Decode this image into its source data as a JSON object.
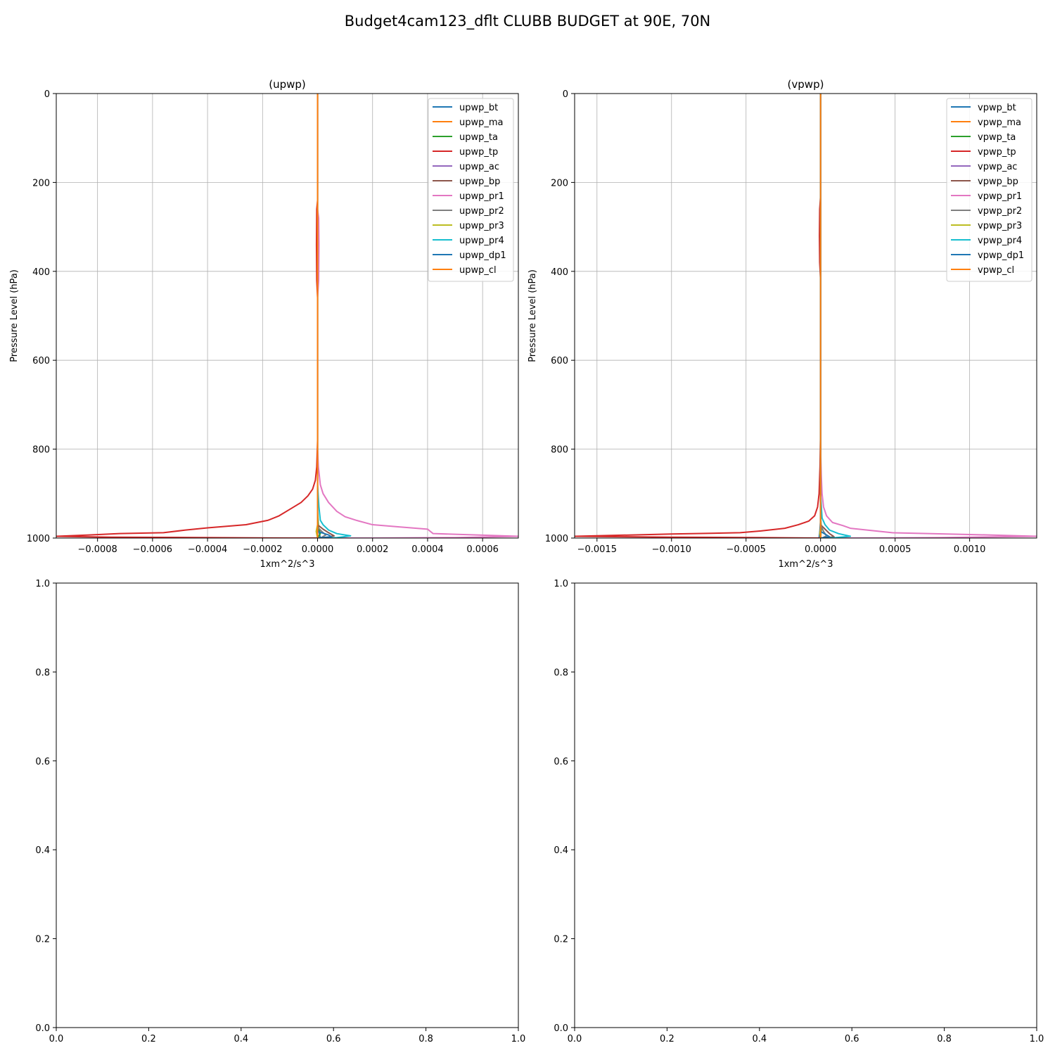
{
  "figure": {
    "suptitle": "Budget4cam123_dflt CLUBB BUDGET at 90E, 70N"
  },
  "chart_data": [
    {
      "type": "line",
      "title": "(upwp)",
      "xlabel": "1xm^2/s^3",
      "ylabel": "Pressure Level (hPa)",
      "xlim": [
        -0.00095,
        0.00073
      ],
      "ylim": [
        1000,
        0
      ],
      "xticks": [
        -0.0008,
        -0.0006,
        -0.0004,
        -0.0002,
        0.0,
        0.0002,
        0.0004,
        0.0006
      ],
      "xtick_labels": [
        "−0.0008",
        "−0.0006",
        "−0.0004",
        "−0.0002",
        "0.0000",
        "0.0002",
        "0.0004",
        "0.0006"
      ],
      "yticks": [
        0,
        200,
        400,
        600,
        800,
        1000
      ],
      "ytick_labels": [
        "0",
        "200",
        "400",
        "600",
        "800",
        "1000"
      ],
      "grid": true,
      "legend": "top-right",
      "series": [
        {
          "name": "upwp_bt",
          "color": "#1f77b4",
          "points": [
            [
              0,
              0
            ],
            [
              0,
              960
            ],
            [
              5e-06,
              985
            ],
            [
              1e-05,
              1000
            ]
          ]
        },
        {
          "name": "upwp_ma",
          "color": "#ff7f0e",
          "points": [
            [
              0,
              0
            ],
            [
              0,
              1000
            ]
          ]
        },
        {
          "name": "upwp_ta",
          "color": "#2ca02c",
          "points": [
            [
              0,
              0
            ],
            [
              0,
              940
            ],
            [
              3e-06,
              975
            ],
            [
              1e-05,
              990
            ],
            [
              0,
              1000
            ]
          ]
        },
        {
          "name": "upwp_tp",
          "color": "#d62728",
          "points": [
            [
              0,
              0
            ],
            [
              0,
              240
            ],
            [
              -3e-06,
              260
            ],
            [
              -4e-06,
              340
            ],
            [
              -3e-06,
              420
            ],
            [
              0,
              460
            ],
            [
              0,
              780
            ],
            [
              -3e-06,
              840
            ],
            [
              -8e-06,
              870
            ],
            [
              -1.8e-05,
              890
            ],
            [
              -3.5e-05,
              905
            ],
            [
              -6e-05,
              920
            ],
            [
              -0.0001,
              935
            ],
            [
              -0.00014,
              950
            ],
            [
              -0.00018,
              960
            ],
            [
              -0.00026,
              970
            ],
            [
              -0.0004,
              977
            ],
            [
              -0.00048,
              982
            ],
            [
              -0.00056,
              988
            ],
            [
              -0.00072,
              990
            ],
            [
              -0.00083,
              993
            ],
            [
              -0.00095,
              996
            ],
            [
              -0.00075,
              998
            ],
            [
              -0.0004,
              999
            ],
            [
              -0.0001,
              1000
            ],
            [
              0,
              1000
            ]
          ]
        },
        {
          "name": "upwp_ac",
          "color": "#9467bd",
          "points": [
            [
              0,
              0
            ],
            [
              0,
              1000
            ]
          ]
        },
        {
          "name": "upwp_bp",
          "color": "#8c564b",
          "points": [
            [
              0,
              0
            ],
            [
              0,
              970
            ],
            [
              2e-05,
              980
            ],
            [
              4e-05,
              988
            ],
            [
              6e-05,
              995
            ],
            [
              2e-05,
              1000
            ]
          ]
        },
        {
          "name": "upwp_pr1",
          "color": "#e377c2",
          "points": [
            [
              0,
              0
            ],
            [
              0,
              260
            ],
            [
              4e-06,
              280
            ],
            [
              5e-06,
              340
            ],
            [
              4e-06,
              420
            ],
            [
              0,
              460
            ],
            [
              0,
              800
            ],
            [
              3e-06,
              840
            ],
            [
              1e-05,
              880
            ],
            [
              2e-05,
              900
            ],
            [
              4e-05,
              920
            ],
            [
              7e-05,
              940
            ],
            [
              0.0001,
              952
            ],
            [
              0.00014,
              960
            ],
            [
              0.0002,
              970
            ],
            [
              0.0003,
              975
            ],
            [
              0.0004,
              980
            ],
            [
              0.00042,
              990
            ],
            [
              0.00073,
              996
            ],
            [
              0.0005,
              999
            ],
            [
              0.0002,
              1000
            ],
            [
              0,
              1000
            ]
          ]
        },
        {
          "name": "upwp_pr2",
          "color": "#7f7f7f",
          "points": [
            [
              0,
              0
            ],
            [
              0,
              975
            ],
            [
              1.5e-05,
              985
            ],
            [
              3e-05,
              993
            ],
            [
              1e-05,
              1000
            ]
          ]
        },
        {
          "name": "upwp_pr3",
          "color": "#bcbd22",
          "points": [
            [
              0,
              0
            ],
            [
              0,
              970
            ],
            [
              -5e-06,
              985
            ],
            [
              0,
              1000
            ]
          ]
        },
        {
          "name": "upwp_pr4",
          "color": "#17becf",
          "points": [
            [
              0,
              0
            ],
            [
              0,
              880
            ],
            [
              5e-06,
              930
            ],
            [
              1e-05,
              960
            ],
            [
              2e-05,
              970
            ],
            [
              4e-05,
              982
            ],
            [
              7e-05,
              990
            ],
            [
              0.00012,
              995
            ],
            [
              7e-05,
              999
            ],
            [
              2e-05,
              1000
            ]
          ]
        },
        {
          "name": "upwp_dp1",
          "color": "#1f77b4",
          "points": [
            [
              0,
              0
            ],
            [
              0,
              985
            ],
            [
              4e-05,
              993
            ],
            [
              5e-05,
              997
            ],
            [
              0,
              1000
            ]
          ]
        },
        {
          "name": "upwp_cl",
          "color": "#ff7f0e",
          "points": [
            [
              0,
              0
            ],
            [
              0,
              1000
            ]
          ]
        }
      ]
    },
    {
      "type": "line",
      "title": "(vpwp)",
      "xlabel": "1xm^2/s^3",
      "ylabel": "Pressure Level (hPa)",
      "xlim": [
        -0.00165,
        0.00145
      ],
      "ylim": [
        1000,
        0
      ],
      "xticks": [
        -0.0015,
        -0.001,
        -0.0005,
        0.0,
        0.0005,
        0.001
      ],
      "xtick_labels": [
        "−0.0015",
        "−0.0010",
        "−0.0005",
        "0.0000",
        "0.0005",
        "0.0010"
      ],
      "yticks": [
        0,
        200,
        400,
        600,
        800,
        1000
      ],
      "ytick_labels": [
        "0",
        "200",
        "400",
        "600",
        "800",
        "1000"
      ],
      "grid": true,
      "legend": "top-right",
      "series": [
        {
          "name": "vpwp_bt",
          "color": "#1f77b4",
          "points": [
            [
              0,
              0
            ],
            [
              0,
              960
            ],
            [
              -5e-06,
              985
            ],
            [
              -1e-05,
              1000
            ]
          ]
        },
        {
          "name": "vpwp_ma",
          "color": "#ff7f0e",
          "points": [
            [
              0,
              0
            ],
            [
              0,
              1000
            ]
          ]
        },
        {
          "name": "vpwp_ta",
          "color": "#2ca02c",
          "points": [
            [
              0,
              0
            ],
            [
              0,
              950
            ],
            [
              5e-06,
              980
            ],
            [
              0,
              1000
            ]
          ]
        },
        {
          "name": "vpwp_tp",
          "color": "#d62728",
          "points": [
            [
              0,
              0
            ],
            [
              0,
              230
            ],
            [
              -6e-06,
              260
            ],
            [
              -8e-06,
              320
            ],
            [
              -6e-06,
              380
            ],
            [
              0,
              420
            ],
            [
              0,
              760
            ],
            [
              -4e-06,
              840
            ],
            [
              -1e-05,
              900
            ],
            [
              -2e-05,
              930
            ],
            [
              -4e-05,
              950
            ],
            [
              -8e-05,
              962
            ],
            [
              -0.00015,
              970
            ],
            [
              -0.00024,
              978
            ],
            [
              -0.0004,
              984
            ],
            [
              -0.00054,
              988
            ],
            [
              -0.001,
              991
            ],
            [
              -0.00165,
              996
            ],
            [
              -0.001,
              998
            ],
            [
              -0.0004,
              999
            ],
            [
              0,
              1000
            ]
          ]
        },
        {
          "name": "vpwp_ac",
          "color": "#9467bd",
          "points": [
            [
              0,
              0
            ],
            [
              0,
              1000
            ]
          ]
        },
        {
          "name": "vpwp_bp",
          "color": "#8c564b",
          "points": [
            [
              0,
              0
            ],
            [
              0,
              970
            ],
            [
              3e-05,
              980
            ],
            [
              6e-05,
              990
            ],
            [
              9e-05,
              997
            ],
            [
              3e-05,
              1000
            ]
          ]
        },
        {
          "name": "vpwp_pr1",
          "color": "#e377c2",
          "points": [
            [
              0,
              0
            ],
            [
              0,
              800
            ],
            [
              5e-06,
              860
            ],
            [
              1e-05,
              900
            ],
            [
              2e-05,
              930
            ],
            [
              4e-05,
              950
            ],
            [
              8e-05,
              965
            ],
            [
              0.00015,
              972
            ],
            [
              0.0002,
              978
            ],
            [
              0.00048,
              988
            ],
            [
              0.001,
              992
            ],
            [
              0.00145,
              996
            ],
            [
              0.0008,
              999
            ],
            [
              0.0002,
              1000
            ],
            [
              0,
              1000
            ]
          ]
        },
        {
          "name": "vpwp_pr2",
          "color": "#7f7f7f",
          "points": [
            [
              0,
              0
            ],
            [
              0,
              970
            ],
            [
              2e-05,
              985
            ],
            [
              4e-05,
              995
            ],
            [
              1e-05,
              1000
            ]
          ]
        },
        {
          "name": "vpwp_pr3",
          "color": "#bcbd22",
          "points": [
            [
              0,
              0
            ],
            [
              0,
              975
            ],
            [
              -5e-06,
              990
            ],
            [
              0,
              1000
            ]
          ]
        },
        {
          "name": "vpwp_pr4",
          "color": "#17becf",
          "points": [
            [
              0,
              0
            ],
            [
              0,
              900
            ],
            [
              1e-05,
              955
            ],
            [
              3e-05,
              970
            ],
            [
              6e-05,
              982
            ],
            [
              0.00012,
              990
            ],
            [
              0.0002,
              996
            ],
            [
              0.0001,
              999
            ],
            [
              3e-05,
              1000
            ]
          ]
        },
        {
          "name": "vpwp_dp1",
          "color": "#1f77b4",
          "points": [
            [
              0,
              0
            ],
            [
              0,
              985
            ],
            [
              4e-05,
              993
            ],
            [
              6e-05,
              997
            ],
            [
              0,
              1000
            ]
          ]
        },
        {
          "name": "vpwp_cl",
          "color": "#ff7f0e",
          "points": [
            [
              0,
              0
            ],
            [
              0,
              1000
            ]
          ]
        }
      ]
    },
    {
      "type": "line",
      "title": "",
      "xlim": [
        0,
        1
      ],
      "ylim": [
        0,
        1
      ],
      "xticks": [
        0,
        0.2,
        0.4,
        0.6,
        0.8,
        1.0
      ],
      "xtick_labels": [
        "0.0",
        "0.2",
        "0.4",
        "0.6",
        "0.8",
        "1.0"
      ],
      "yticks": [
        0,
        0.2,
        0.4,
        0.6,
        0.8,
        1.0
      ],
      "ytick_labels": [
        "0.0",
        "0.2",
        "0.4",
        "0.6",
        "0.8",
        "1.0"
      ],
      "grid": false,
      "series": []
    },
    {
      "type": "line",
      "title": "",
      "xlim": [
        0,
        1
      ],
      "ylim": [
        0,
        1
      ],
      "xticks": [
        0,
        0.2,
        0.4,
        0.6,
        0.8,
        1.0
      ],
      "xtick_labels": [
        "0.0",
        "0.2",
        "0.4",
        "0.6",
        "0.8",
        "1.0"
      ],
      "yticks": [
        0,
        0.2,
        0.4,
        0.6,
        0.8,
        1.0
      ],
      "ytick_labels": [
        "0.0",
        "0.2",
        "0.4",
        "0.6",
        "0.8",
        "1.0"
      ],
      "grid": false,
      "series": []
    }
  ]
}
